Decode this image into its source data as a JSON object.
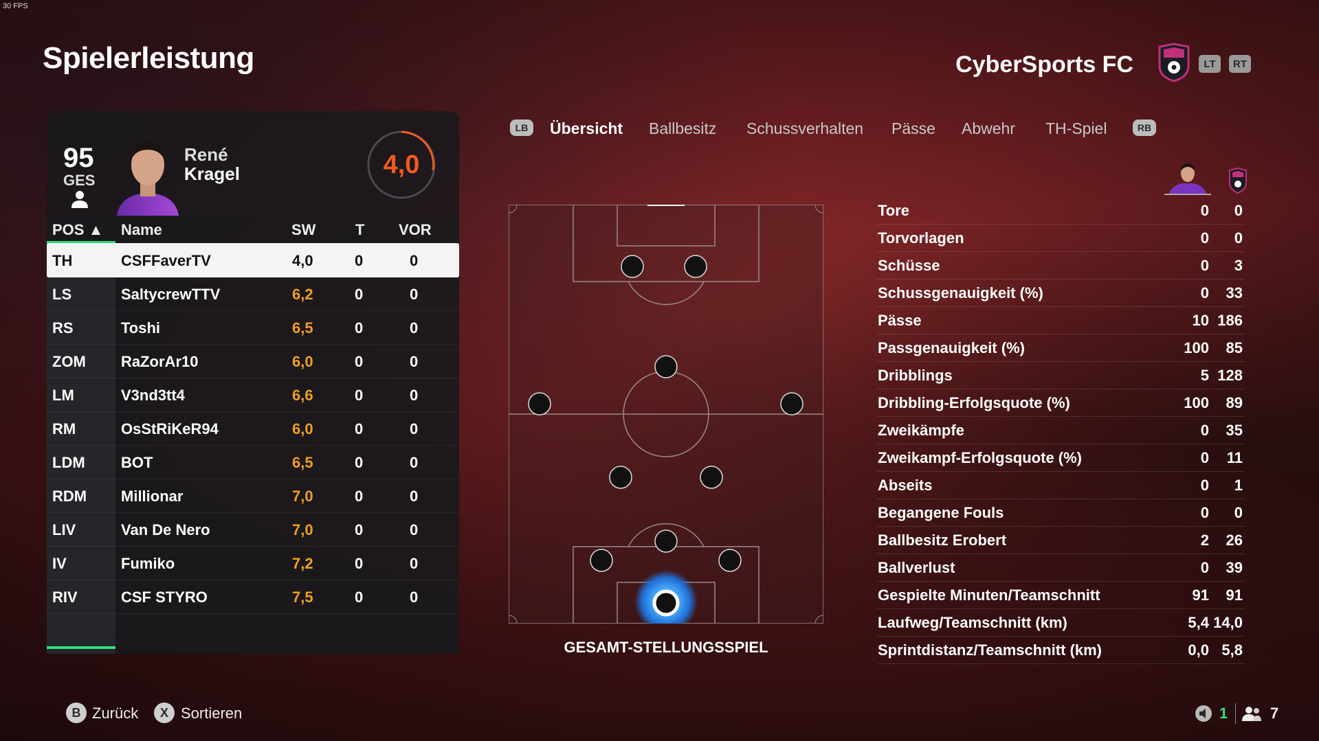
{
  "overlay": {
    "fps": "30 FPS"
  },
  "header": {
    "title": "Spielerleistung",
    "club_name": "CyberSports FC",
    "lt": "LT",
    "rt": "RT",
    "crest_icon": "club-crest-icon"
  },
  "player_card": {
    "overall": "95",
    "overall_label": "GES",
    "first_name": "René",
    "last_name": "Kragel",
    "match_rating": "4,0",
    "rating_color": "#f25a1e"
  },
  "table": {
    "headers": {
      "pos": "POS ▲",
      "name": "Name",
      "sw": "SW",
      "t": "T",
      "vor": "VOR"
    },
    "rows": [
      {
        "pos": "TH",
        "name": "CSFFaverTV",
        "sw": "4,0",
        "t": "0",
        "vor": "0"
      },
      {
        "pos": "LS",
        "name": "SaltycrewTTV",
        "sw": "6,2",
        "t": "0",
        "vor": "0"
      },
      {
        "pos": "RS",
        "name": "Toshi",
        "sw": "6,5",
        "t": "0",
        "vor": "0"
      },
      {
        "pos": "ZOM",
        "name": "RaZorAr10",
        "sw": "6,0",
        "t": "0",
        "vor": "0"
      },
      {
        "pos": "LM",
        "name": "V3nd3tt4",
        "sw": "6,6",
        "t": "0",
        "vor": "0"
      },
      {
        "pos": "RM",
        "name": "OsStRiKeR94",
        "sw": "6,0",
        "t": "0",
        "vor": "0"
      },
      {
        "pos": "LDM",
        "name": "BOT",
        "sw": "6,5",
        "t": "0",
        "vor": "0"
      },
      {
        "pos": "RDM",
        "name": "Millionar",
        "sw": "7,0",
        "t": "0",
        "vor": "0"
      },
      {
        "pos": "LIV",
        "name": "Van De Nero",
        "sw": "7,0",
        "t": "0",
        "vor": "0"
      },
      {
        "pos": "IV",
        "name": "Fumiko",
        "sw": "7,2",
        "t": "0",
        "vor": "0"
      },
      {
        "pos": "RIV",
        "name": "CSF STYRO",
        "sw": "7,5",
        "t": "0",
        "vor": "0"
      }
    ]
  },
  "tabs": {
    "lb": "LB",
    "rb": "RB",
    "items": [
      "Übersicht",
      "Ballbesitz",
      "Schussverhalten",
      "Pässe",
      "Abwehr",
      "TH-Spiel"
    ],
    "active": "Übersicht"
  },
  "pitch": {
    "caption": "GESAMT-STELLUNGSSPIEL",
    "highlight_color": "#2a9bff"
  },
  "stats": [
    {
      "label": "Tore",
      "player": "0",
      "team": "0"
    },
    {
      "label": "Torvorlagen",
      "player": "0",
      "team": "0"
    },
    {
      "label": "Schüsse",
      "player": "0",
      "team": "3"
    },
    {
      "label": "Schussgenauigkeit (%)",
      "player": "0",
      "team": "33"
    },
    {
      "label": "Pässe",
      "player": "10",
      "team": "186"
    },
    {
      "label": "Passgenauigkeit (%)",
      "player": "100",
      "team": "85"
    },
    {
      "label": "Dribblings",
      "player": "5",
      "team": "128"
    },
    {
      "label": "Dribbling-Erfolgsquote (%)",
      "player": "100",
      "team": "89"
    },
    {
      "label": "Zweikämpfe",
      "player": "0",
      "team": "35"
    },
    {
      "label": "Zweikampf-Erfolgsquote (%)",
      "player": "0",
      "team": "11"
    },
    {
      "label": "Abseits",
      "player": "0",
      "team": "1"
    },
    {
      "label": "Begangene Fouls",
      "player": "0",
      "team": "0"
    },
    {
      "label": "Ballbesitz Erobert",
      "player": "2",
      "team": "26"
    },
    {
      "label": "Ballverlust",
      "player": "0",
      "team": "39"
    },
    {
      "label": "Gespielte Minuten/Teamschnitt",
      "player": "91",
      "team": "91"
    },
    {
      "label": "Laufweg/Teamschnitt (km)",
      "player": "5,4",
      "team": "14,0"
    },
    {
      "label": "Sprintdistanz/Teamschnitt (km)",
      "player": "0,0",
      "team": "5,8"
    }
  ],
  "footer": {
    "back_glyph": "B",
    "back_label": "Zurück",
    "sort_glyph": "X",
    "sort_label": "Sortieren",
    "voice_count": "1",
    "party_count": "7",
    "voice_color": "#2ee07d"
  }
}
